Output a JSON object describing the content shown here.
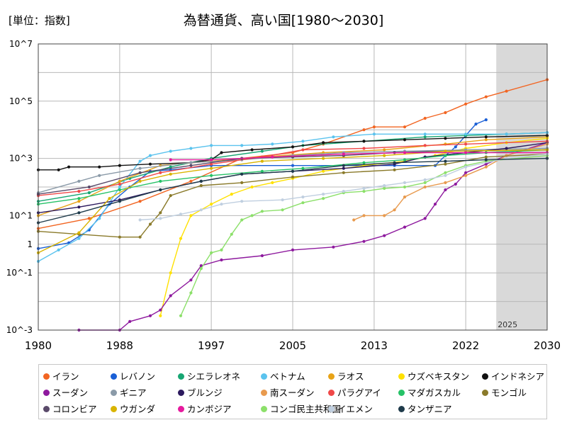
{
  "page": {
    "unit_label": "[単位：指数]",
    "title": "為替通貨、高い国[1980～2030]",
    "forecast_label": "2025"
  },
  "chart_data": {
    "type": "line",
    "title": "為替通貨、高い国[1980～2030]",
    "xlabel": "",
    "ylabel": "",
    "x_range": [
      1980,
      2030
    ],
    "x_ticks": [
      1980,
      1988,
      1997,
      2005,
      2013,
      2022,
      2030
    ],
    "y_scale": "log",
    "y_range": [
      0.001,
      10000000
    ],
    "y_ticks": [
      {
        "value": 10000000,
        "label": "10^7"
      },
      {
        "value": 100000,
        "label": "10^5"
      },
      {
        "value": 1000,
        "label": "10^3"
      },
      {
        "value": 10,
        "label": "10^1"
      },
      {
        "value": 1,
        "label": "1"
      },
      {
        "value": 0.1,
        "label": "10^-1"
      },
      {
        "value": 0.001,
        "label": "10^-3"
      }
    ],
    "forecast_start": 2025,
    "grid": true,
    "legend_position": "bottom",
    "series": [
      {
        "name": "イラン",
        "color": "#f26522",
        "points": [
          [
            1980,
            0.55
          ],
          [
            1985,
            0.9
          ],
          [
            1990,
            1.5
          ],
          [
            1995,
            2.2
          ],
          [
            2000,
            3.0
          ],
          [
            2005,
            3.2
          ],
          [
            2008,
            3.5
          ],
          [
            2012,
            4.0
          ],
          [
            2013,
            4.1
          ],
          [
            2016,
            4.1
          ],
          [
            2018,
            4.4
          ],
          [
            2020,
            4.6
          ],
          [
            2022,
            4.9
          ],
          [
            2024,
            5.15
          ],
          [
            2026,
            5.35
          ],
          [
            2030,
            5.75
          ]
        ]
      },
      {
        "name": "レバノン",
        "color": "#1a5fd6",
        "points": [
          [
            1980,
            -0.15
          ],
          [
            1983,
            0.05
          ],
          [
            1985,
            0.5
          ],
          [
            1987,
            1.4
          ],
          [
            1989,
            2.0
          ],
          [
            1991,
            2.55
          ],
          [
            1993,
            2.6
          ],
          [
            1997,
            2.75
          ],
          [
            2005,
            2.75
          ],
          [
            2015,
            2.75
          ],
          [
            2019,
            2.75
          ],
          [
            2020,
            3.1
          ],
          [
            2021,
            3.4
          ],
          [
            2022,
            3.8
          ],
          [
            2023,
            4.2
          ],
          [
            2024,
            4.35
          ]
        ]
      },
      {
        "name": "シエラレオネ",
        "color": "#17a673",
        "points": [
          [
            1980,
            1.5
          ],
          [
            1985,
            1.8
          ],
          [
            1989,
            2.3
          ],
          [
            1993,
            2.7
          ],
          [
            1997,
            3.0
          ],
          [
            2002,
            3.25
          ],
          [
            2006,
            3.45
          ],
          [
            2012,
            3.6
          ],
          [
            2018,
            3.75
          ],
          [
            2022,
            3.8
          ],
          [
            2026,
            3.85
          ],
          [
            2030,
            3.9
          ]
        ]
      },
      {
        "name": "ベトナム",
        "color": "#5bc3ee",
        "points": [
          [
            1980,
            -0.6
          ],
          [
            1982,
            -0.2
          ],
          [
            1984,
            0.2
          ],
          [
            1986,
            0.9
          ],
          [
            1988,
            2.0
          ],
          [
            1990,
            2.9
          ],
          [
            1991,
            3.1
          ],
          [
            1993,
            3.25
          ],
          [
            1995,
            3.35
          ],
          [
            1997,
            3.45
          ],
          [
            2000,
            3.45
          ],
          [
            2003,
            3.5
          ],
          [
            2006,
            3.6
          ],
          [
            2009,
            3.75
          ],
          [
            2013,
            3.85
          ],
          [
            2018,
            3.85
          ],
          [
            2022,
            3.85
          ],
          [
            2026,
            3.85
          ],
          [
            2030,
            3.9
          ]
        ]
      },
      {
        "name": "ラオス",
        "color": "#e8a317",
        "points": [
          [
            1980,
            1.0
          ],
          [
            1984,
            1.5
          ],
          [
            1988,
            2.2
          ],
          [
            1992,
            2.75
          ],
          [
            1997,
            2.9
          ],
          [
            2002,
            3.05
          ],
          [
            2008,
            3.2
          ],
          [
            2014,
            3.3
          ],
          [
            2020,
            3.5
          ],
          [
            2024,
            3.65
          ],
          [
            2030,
            3.75
          ]
        ]
      },
      {
        "name": "ウズベキスタン",
        "color": "#ffe100",
        "points": [
          [
            1992,
            -2.5
          ],
          [
            1993,
            -1.0
          ],
          [
            1994,
            0.2
          ],
          [
            1995,
            1.0
          ],
          [
            1997,
            1.4
          ],
          [
            1999,
            1.75
          ],
          [
            2001,
            2.0
          ],
          [
            2003,
            2.15
          ],
          [
            2005,
            2.3
          ],
          [
            2008,
            2.55
          ],
          [
            2012,
            2.75
          ],
          [
            2016,
            2.9
          ],
          [
            2019,
            3.1
          ],
          [
            2022,
            3.35
          ],
          [
            2026,
            3.55
          ],
          [
            2030,
            3.7
          ]
        ]
      },
      {
        "name": "インドネシア",
        "color": "#111111",
        "points": [
          [
            1980,
            2.6
          ],
          [
            1982,
            2.6
          ],
          [
            1983,
            2.7
          ],
          [
            1986,
            2.7
          ],
          [
            1988,
            2.75
          ],
          [
            1991,
            2.8
          ],
          [
            1995,
            2.85
          ],
          [
            1997,
            2.95
          ],
          [
            1998,
            3.2
          ],
          [
            2001,
            3.3
          ],
          [
            2005,
            3.4
          ],
          [
            2008,
            3.55
          ],
          [
            2012,
            3.6
          ],
          [
            2016,
            3.65
          ],
          [
            2020,
            3.7
          ],
          [
            2024,
            3.75
          ],
          [
            2030,
            3.8
          ]
        ]
      },
      {
        "name": "スーダン",
        "color": "#8e1a9e",
        "points": [
          [
            1984,
            -3.0
          ],
          [
            1988,
            -3.0
          ],
          [
            1989,
            -2.7
          ],
          [
            1991,
            -2.5
          ],
          [
            1992,
            -2.3
          ],
          [
            1993,
            -1.8
          ],
          [
            1995,
            -1.25
          ],
          [
            1996,
            -0.75
          ],
          [
            1998,
            -0.55
          ],
          [
            2002,
            -0.4
          ],
          [
            2005,
            -0.2
          ],
          [
            2009,
            -0.1
          ],
          [
            2012,
            0.1
          ],
          [
            2014,
            0.3
          ],
          [
            2016,
            0.6
          ],
          [
            2018,
            0.9
          ],
          [
            2019,
            1.4
          ],
          [
            2020,
            1.9
          ],
          [
            2021,
            2.1
          ],
          [
            2022,
            2.5
          ],
          [
            2024,
            2.8
          ],
          [
            2026,
            3.1
          ],
          [
            2030,
            3.55
          ]
        ]
      },
      {
        "name": "ギニア",
        "color": "#8a9aa8",
        "points": [
          [
            1980,
            1.8
          ],
          [
            1984,
            2.2
          ],
          [
            1986,
            2.4
          ],
          [
            1990,
            2.65
          ],
          [
            1995,
            2.85
          ],
          [
            2000,
            2.95
          ],
          [
            2005,
            3.1
          ],
          [
            2010,
            3.2
          ],
          [
            2016,
            3.25
          ],
          [
            2022,
            3.3
          ],
          [
            2030,
            3.35
          ]
        ]
      },
      {
        "name": "ブルンジ",
        "color": "#2c1a5e",
        "points": [
          [
            1980,
            1.1
          ],
          [
            1984,
            1.3
          ],
          [
            1988,
            1.55
          ],
          [
            1992,
            1.9
          ],
          [
            1996,
            2.2
          ],
          [
            2000,
            2.45
          ],
          [
            2005,
            2.55
          ],
          [
            2010,
            2.65
          ],
          [
            2015,
            2.8
          ],
          [
            2018,
            3.05
          ],
          [
            2022,
            3.2
          ],
          [
            2026,
            3.35
          ],
          [
            2030,
            3.55
          ]
        ]
      },
      {
        "name": "南スーダン",
        "color": "#e89a4e",
        "points": [
          [
            2011,
            0.85
          ],
          [
            2012,
            1.0
          ],
          [
            2014,
            1.0
          ],
          [
            2015,
            1.2
          ],
          [
            2016,
            1.65
          ],
          [
            2018,
            2.0
          ],
          [
            2020,
            2.15
          ],
          [
            2022,
            2.4
          ],
          [
            2024,
            2.7
          ],
          [
            2026,
            3.1
          ],
          [
            2030,
            3.5
          ]
        ]
      },
      {
        "name": "パラグアイ",
        "color": "#f04848",
        "points": [
          [
            1980,
            1.7
          ],
          [
            1984,
            1.85
          ],
          [
            1988,
            2.1
          ],
          [
            1992,
            2.5
          ],
          [
            1997,
            2.8
          ],
          [
            2002,
            3.05
          ],
          [
            2006,
            3.3
          ],
          [
            2012,
            3.35
          ],
          [
            2018,
            3.45
          ],
          [
            2022,
            3.5
          ],
          [
            2030,
            3.6
          ]
        ]
      },
      {
        "name": "マダガスカル",
        "color": "#26c267",
        "points": [
          [
            1980,
            1.4
          ],
          [
            1984,
            1.6
          ],
          [
            1988,
            1.9
          ],
          [
            1992,
            2.2
          ],
          [
            1997,
            2.4
          ],
          [
            2002,
            2.55
          ],
          [
            2006,
            2.65
          ],
          [
            2012,
            2.85
          ],
          [
            2016,
            2.95
          ],
          [
            2020,
            3.1
          ],
          [
            2024,
            3.2
          ],
          [
            2030,
            3.3
          ]
        ]
      },
      {
        "name": "モンゴル",
        "color": "#8a7a2a",
        "points": [
          [
            1980,
            0.45
          ],
          [
            1984,
            0.35
          ],
          [
            1988,
            0.25
          ],
          [
            1990,
            0.25
          ],
          [
            1991,
            0.7
          ],
          [
            1992,
            1.1
          ],
          [
            1993,
            1.7
          ],
          [
            1996,
            2.05
          ],
          [
            2000,
            2.15
          ],
          [
            2005,
            2.35
          ],
          [
            2010,
            2.5
          ],
          [
            2015,
            2.6
          ],
          [
            2020,
            2.8
          ],
          [
            2024,
            3.05
          ],
          [
            2030,
            3.15
          ]
        ]
      },
      {
        "name": "コロンビア",
        "color": "#5a4a6a",
        "points": [
          [
            1980,
            1.75
          ],
          [
            1985,
            2.0
          ],
          [
            1990,
            2.5
          ],
          [
            1995,
            2.75
          ],
          [
            2000,
            3.0
          ],
          [
            2005,
            3.05
          ],
          [
            2010,
            3.1
          ],
          [
            2015,
            3.2
          ],
          [
            2020,
            3.25
          ],
          [
            2030,
            3.3
          ]
        ]
      },
      {
        "name": "ウガンダ",
        "color": "#d9b400",
        "points": [
          [
            1980,
            -0.3
          ],
          [
            1984,
            0.4
          ],
          [
            1987,
            1.6
          ],
          [
            1990,
            2.2
          ],
          [
            1993,
            2.45
          ],
          [
            1997,
            2.65
          ],
          [
            2002,
            2.9
          ],
          [
            2008,
            3.0
          ],
          [
            2014,
            3.1
          ],
          [
            2020,
            3.25
          ],
          [
            2030,
            3.3
          ]
        ]
      },
      {
        "name": "カンボジア",
        "color": "#e61a9e",
        "points": [
          [
            1993,
            2.95
          ],
          [
            1997,
            2.95
          ],
          [
            2003,
            3.05
          ],
          [
            2010,
            3.15
          ],
          [
            2016,
            3.2
          ],
          [
            2022,
            3.2
          ],
          [
            2030,
            3.2
          ]
        ]
      },
      {
        "name": "コンゴ民主共和国",
        "color": "#8ce06a",
        "points": [
          [
            1994,
            -2.5
          ],
          [
            1995,
            -1.7
          ],
          [
            1996,
            -0.85
          ],
          [
            1997,
            -0.3
          ],
          [
            1998,
            -0.2
          ],
          [
            1999,
            0.35
          ],
          [
            2000,
            0.85
          ],
          [
            2001,
            1.0
          ],
          [
            2002,
            1.15
          ],
          [
            2004,
            1.2
          ],
          [
            2006,
            1.45
          ],
          [
            2008,
            1.6
          ],
          [
            2010,
            1.8
          ],
          [
            2012,
            1.85
          ],
          [
            2014,
            1.95
          ],
          [
            2016,
            2.0
          ],
          [
            2018,
            2.15
          ],
          [
            2020,
            2.5
          ],
          [
            2022,
            2.75
          ],
          [
            2024,
            2.9
          ],
          [
            2030,
            3.1
          ]
        ]
      },
      {
        "name": "イエメン",
        "color": "#c0cfe0",
        "points": [
          [
            1990,
            0.85
          ],
          [
            1992,
            0.9
          ],
          [
            1994,
            1.05
          ],
          [
            1996,
            1.2
          ],
          [
            1998,
            1.4
          ],
          [
            2000,
            1.5
          ],
          [
            2004,
            1.55
          ],
          [
            2006,
            1.65
          ],
          [
            2008,
            1.75
          ],
          [
            2010,
            1.85
          ],
          [
            2012,
            1.95
          ],
          [
            2014,
            2.05
          ],
          [
            2016,
            2.15
          ],
          [
            2018,
            2.25
          ],
          [
            2020,
            2.4
          ],
          [
            2022,
            2.7
          ],
          [
            2026,
            3.0
          ],
          [
            2030,
            3.15
          ]
        ]
      },
      {
        "name": "タンザニア",
        "color": "#1e3a4a",
        "points": [
          [
            1980,
            0.75
          ],
          [
            1984,
            1.1
          ],
          [
            1988,
            1.5
          ],
          [
            1992,
            1.9
          ],
          [
            1996,
            2.2
          ],
          [
            2000,
            2.45
          ],
          [
            2005,
            2.55
          ],
          [
            2010,
            2.75
          ],
          [
            2015,
            2.85
          ],
          [
            2020,
            2.9
          ],
          [
            2024,
            2.95
          ],
          [
            2030,
            3.0
          ]
        ]
      }
    ]
  }
}
